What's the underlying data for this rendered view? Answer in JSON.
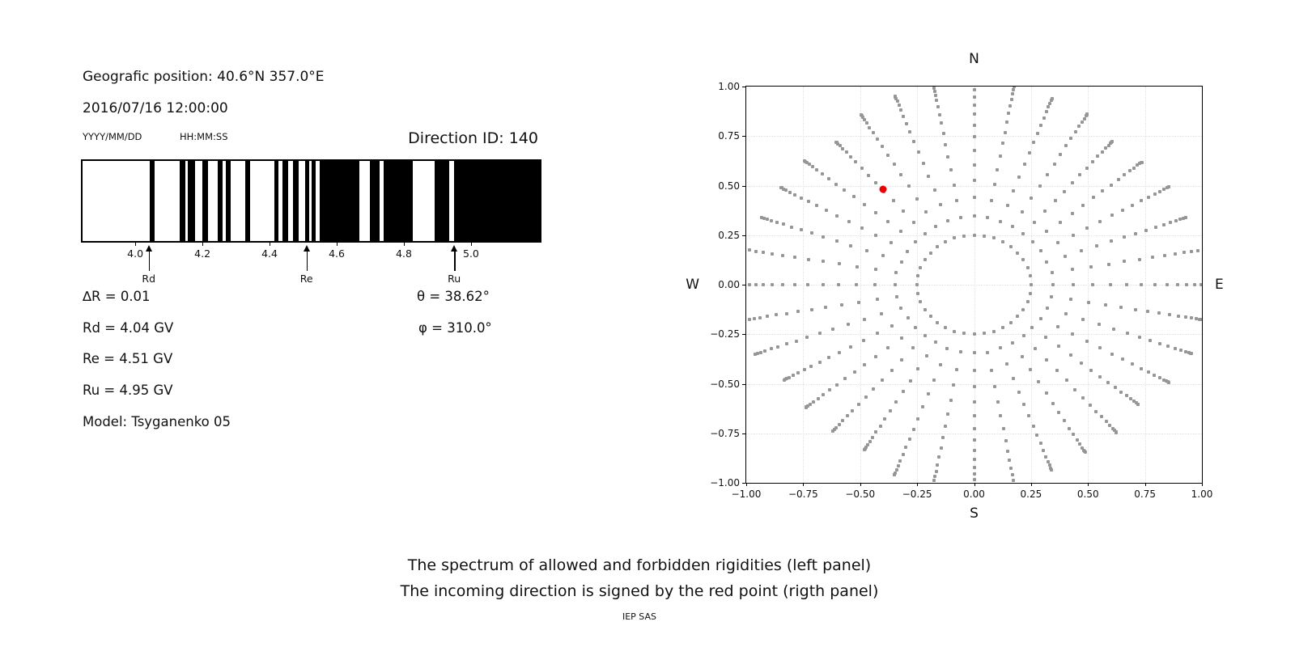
{
  "header": {
    "position_line": "Geografic position: 40.6°N 357.0°E",
    "datetime_line": "2016/07/16 12:00:00",
    "date_format": "YYYY/MM/DD",
    "time_format": "HH:MM:SS",
    "direction_id_label": "Direction ID: 140"
  },
  "spectrum": {
    "axis": {
      "min": 3.843,
      "max": 5.205,
      "unit": "GV",
      "ticks": [
        4.0,
        4.2,
        4.4,
        4.6,
        4.8,
        5.0
      ],
      "tick_labels": [
        "4.0",
        "4.2",
        "4.4",
        "4.6",
        "4.8",
        "5.0"
      ]
    },
    "markers": [
      {
        "label": "Rd",
        "r": 4.04
      },
      {
        "label": "Re",
        "r": 4.51
      },
      {
        "label": "Ru",
        "r": 4.95
      }
    ],
    "stats_left": [
      "∆R = 0.01",
      "Rd = 4.04 GV",
      "Re = 4.51 GV",
      "Ru = 4.95 GV",
      "Model: Tsyganenko 05"
    ],
    "stats_right": [
      "θ = 38.62°",
      "φ = 310.0°"
    ]
  },
  "direction_plot": {
    "compass": {
      "n": "N",
      "s": "S",
      "e": "E",
      "w": "W"
    },
    "tick_values": [
      -1.0,
      -0.75,
      -0.5,
      -0.25,
      0.0,
      0.25,
      0.5,
      0.75,
      1.0
    ],
    "x_tick_labels": [
      "−1.00",
      "−0.75",
      "−0.50",
      "−0.25",
      "0.00",
      "0.25",
      "0.50",
      "0.75",
      "1.00"
    ],
    "y_tick_labels": [
      "1.00",
      "0.75",
      "0.50",
      "0.25",
      "0.00",
      "−0.25",
      "−0.50",
      "−0.75",
      "−1.00"
    ],
    "grid_values": [
      -0.75,
      -0.5,
      -0.25,
      0.0,
      0.25,
      0.5,
      0.75
    ]
  },
  "captions": {
    "line1": "The spectrum of allowed and forbidden rigidities (left panel)",
    "line2": "The incoming direction is signed by the red point (rigth panel)",
    "credit": "IEP SAS"
  },
  "colors": {
    "allowed_band": "#000000",
    "forbidden_background": "#ffffff",
    "gray_dot": "#969696",
    "red_point": "#ee0000",
    "grid": "#e0e0e0",
    "text": "#111111"
  },
  "chart_data": [
    {
      "type": "table",
      "title": "Allowed (black) rigidity bands, GV — white gaps are forbidden",
      "columns": [
        "band_start_GV",
        "band_end_GV"
      ],
      "rows": [
        [
          4.044,
          4.058
        ],
        [
          4.132,
          4.149
        ],
        [
          4.157,
          4.179
        ],
        [
          4.199,
          4.217
        ],
        [
          4.245,
          4.26
        ],
        [
          4.27,
          4.283
        ],
        [
          4.328,
          4.341
        ],
        [
          4.414,
          4.427
        ],
        [
          4.438,
          4.455
        ],
        [
          4.47,
          4.486
        ],
        [
          4.506,
          4.518
        ],
        [
          4.525,
          4.537
        ],
        [
          4.549,
          4.667
        ],
        [
          4.699,
          4.727
        ],
        [
          4.739,
          4.827
        ],
        [
          4.892,
          4.936
        ],
        [
          4.95,
          5.205
        ]
      ],
      "x_axis": {
        "min": 3.843,
        "max": 5.205,
        "ticks": [
          4.0,
          4.2,
          4.4,
          4.6,
          4.8,
          5.0
        ]
      },
      "annotations": {
        "Rd": 4.04,
        "Re": 4.51,
        "Ru": 4.95
      }
    },
    {
      "type": "scatter",
      "xlim": [
        -1.0,
        1.0
      ],
      "ylim": [
        -1.0,
        1.0
      ],
      "grid": true,
      "tick_step": 0.25,
      "series": [
        {
          "name": "direction-grid-gray-dots",
          "marker": "square",
          "color": "#969696",
          "generator": {
            "kind": "radial-spokes",
            "angle_count": 36,
            "angle_step_deg": 10,
            "r_inner": 0.25,
            "dots_per_spoke": 17,
            "tip_base": 1.0,
            "tip_quad_amp": 0.045,
            "tip_jitter_amp": 0.018,
            "note": "dots of each spoke start on ring r=0.25 and cluster densely at the outer tip; clipped to axes box"
          }
        },
        {
          "name": "incoming-direction-red-point",
          "marker": "circle",
          "color": "#ee0000",
          "points": [
            [
              -0.4,
              0.48
            ]
          ]
        }
      ]
    }
  ]
}
